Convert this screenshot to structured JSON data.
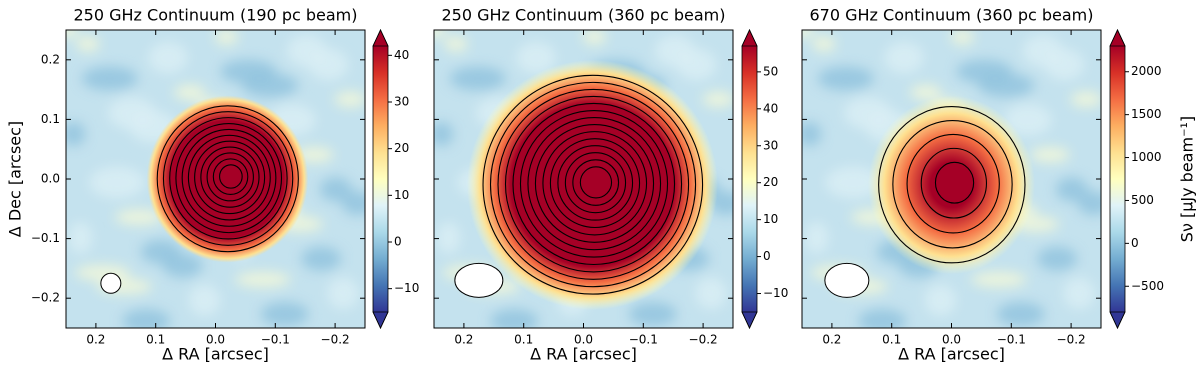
{
  "chart_data": [
    {
      "type": "heatmap",
      "title": "250 GHz Continuum (190 pc beam)",
      "xlabel": "Δ RA [arcsec]",
      "ylabel": "Δ Dec [arcsec]",
      "xlim": [
        0.25,
        -0.25
      ],
      "xticks": [
        0.2,
        0.1,
        {
          "value": 0,
          "label": "0.0"
        },
        {
          "value": -0.1,
          "label": "−0.1"
        },
        {
          "value": -0.2,
          "label": "−0.2"
        }
      ],
      "ylim": [
        -0.25,
        0.25
      ],
      "yticks": [
        {
          "value": -0.2,
          "label": "−0.2"
        },
        {
          "value": -0.1,
          "label": "−0.1"
        },
        {
          "value": 0,
          "label": "0.0"
        },
        0.1,
        0.2
      ],
      "clim": [
        -15,
        42
      ],
      "cticks": [
        {
          "value": -10,
          "label": "−10"
        },
        0,
        10,
        20,
        30,
        40
      ]
    },
    {
      "type": "heatmap",
      "title": "250 GHz Continuum (360 pc beam)",
      "xlabel": "Δ RA [arcsec]",
      "xlim": [
        0.25,
        -0.25
      ],
      "xticks": [
        0.2,
        0.1,
        {
          "value": 0,
          "label": "0.0"
        },
        {
          "value": -0.1,
          "label": "−0.1"
        },
        {
          "value": -0.2,
          "label": "−0.2"
        }
      ],
      "ylim": [
        -0.25,
        0.25
      ],
      "yticks": [
        -0.2,
        -0.1,
        0,
        0.1,
        0.2
      ],
      "clim": [
        -15,
        57
      ],
      "cticks": [
        {
          "value": -10,
          "label": "−10"
        },
        0,
        10,
        20,
        30,
        40,
        50
      ]
    },
    {
      "type": "heatmap",
      "title": "670 GHz Continuum (360 pc beam)",
      "xlabel": "Δ RA [arcsec]",
      "colorbar_label": "Sν [μJy beam⁻¹]",
      "xlim": [
        0.25,
        -0.25
      ],
      "xticks": [
        0.2,
        0.1,
        {
          "value": 0,
          "label": "0.0"
        },
        {
          "value": -0.1,
          "label": "−0.1"
        },
        {
          "value": -0.2,
          "label": "−0.2"
        }
      ],
      "ylim": [
        -0.25,
        0.25
      ],
      "yticks": [
        -0.2,
        -0.1,
        0,
        0.1,
        0.2
      ],
      "clim": [
        -800,
        2300
      ],
      "cticks": [
        {
          "value": -500,
          "label": "−500"
        },
        0,
        500,
        1000,
        1500,
        2000
      ]
    }
  ]
}
